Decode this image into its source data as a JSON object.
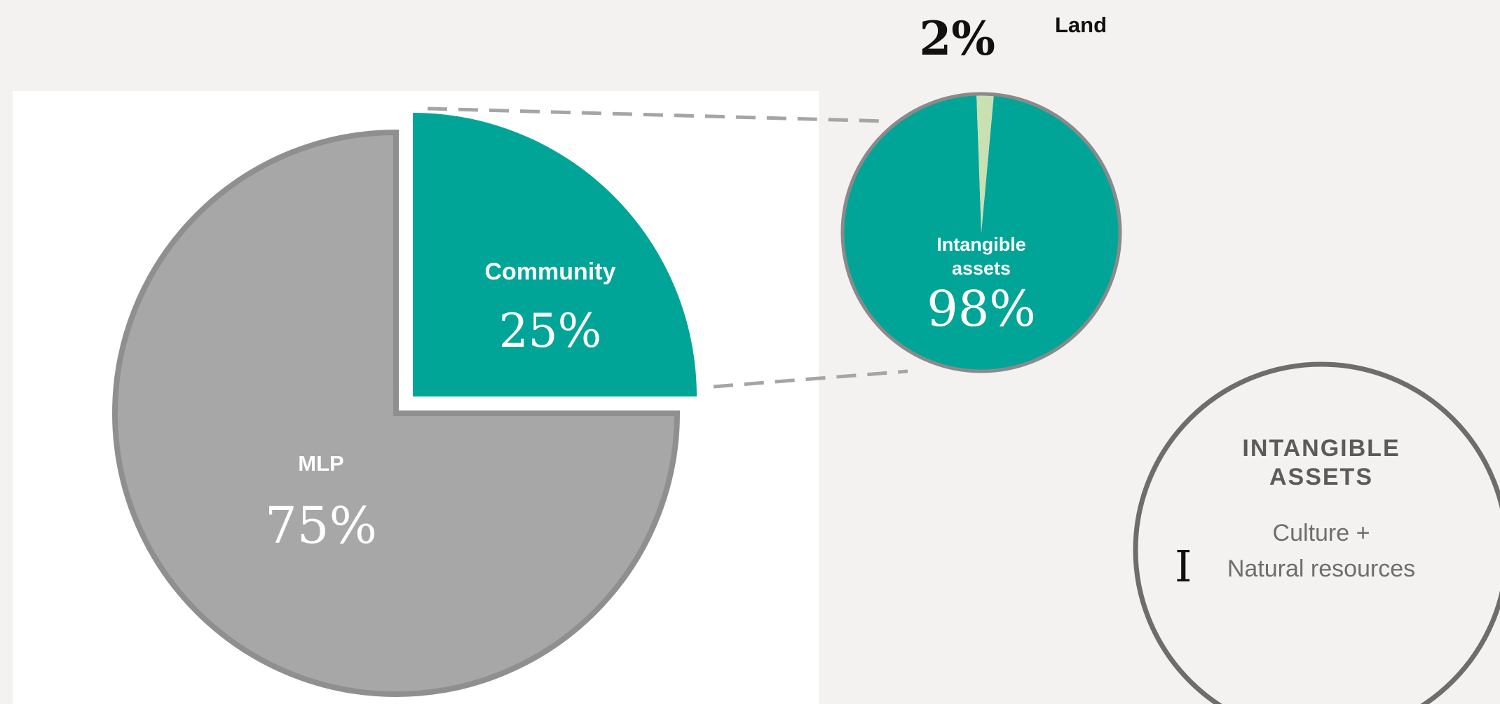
{
  "chart_data": [
    {
      "type": "pie",
      "slices": [
        {
          "label": "Community",
          "value_label": "25%",
          "value": 25,
          "color": "#00a597",
          "exploded": true
        },
        {
          "label": "MLP",
          "value_label": "75%",
          "value": 75,
          "color": "#a7a7a7",
          "exploded": false
        }
      ]
    },
    {
      "type": "pie",
      "slices": [
        {
          "label": "Land",
          "value_label": "2%",
          "value": 2,
          "color": "#c9e0b2"
        },
        {
          "label_lines": [
            "Intangible",
            "assets"
          ],
          "value_label": "98%",
          "value": 98,
          "color": "#00a597"
        }
      ]
    }
  ],
  "callout": {
    "title_lines": [
      "INTANGIBLE",
      "ASSETS"
    ],
    "body_lines": [
      "Culture +",
      "Natural resources"
    ]
  },
  "colors": {
    "teal": "#00a597",
    "gray": "#a7a7a7",
    "gray_edge": "#8f8f8f",
    "land": "#c9e0b2",
    "dash": "#a5a5a5",
    "callout_title": "#5b5b5b",
    "callout_body": "#6e6e6e",
    "ring": "#6d6d6d"
  },
  "icons": {
    "cursor": "text-cursor-icon"
  }
}
